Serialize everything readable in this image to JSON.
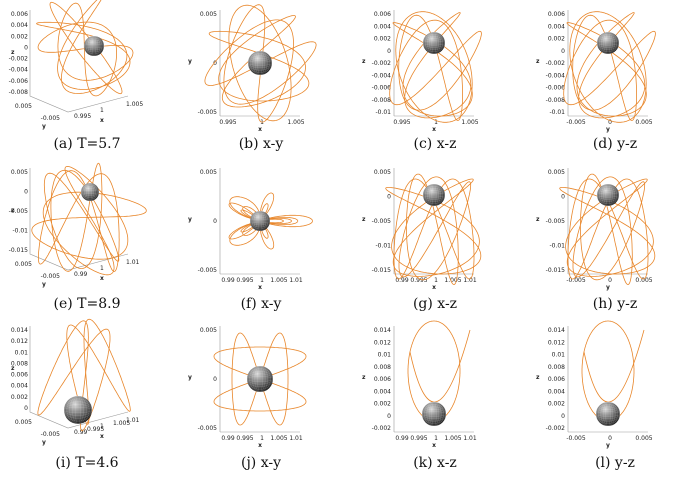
{
  "figures": [
    {
      "row": [
        {
          "caption": "(a)  T=5.7",
          "view": "3d",
          "xlabel": "x",
          "ylabel": "y",
          "zlabel": "z",
          "xticks": [
            "0.995",
            "1",
            "1.005"
          ],
          "yticks": [
            "0.005",
            "-0.005"
          ],
          "zticks": [
            "0.006",
            "0.004",
            "0.002",
            "0",
            "-0.002",
            "-0.004",
            "-0.006",
            "-0.008"
          ]
        },
        {
          "caption": "(b)  x-y",
          "view": "xy",
          "xlabel": "x",
          "ylabel": "y",
          "xticks": [
            "0.995",
            "1",
            "1.005"
          ],
          "yticks": [
            "0.005",
            "0",
            "-0.005"
          ]
        },
        {
          "caption": "(c)  x-z",
          "view": "xz",
          "xlabel": "x",
          "ylabel": "z",
          "xticks": [
            "0.995",
            "1",
            "1.005"
          ],
          "yticks": [
            "0.006",
            "0.004",
            "0.002",
            "0",
            "-0.002",
            "-0.004",
            "-0.006",
            "-0.008",
            "-0.01"
          ]
        },
        {
          "caption": "(d)  y-z",
          "view": "yz",
          "xlabel": "y",
          "ylabel": "z",
          "xticks": [
            "-0.005",
            "0",
            "0.005"
          ],
          "yticks": [
            "0.006",
            "0.004",
            "0.002",
            "0",
            "-0.002",
            "-0.004",
            "-0.006",
            "-0.008",
            "-0.01"
          ]
        }
      ]
    },
    {
      "row": [
        {
          "caption": "(e)  T=8.9",
          "view": "3d",
          "xlabel": "x",
          "ylabel": "y",
          "zlabel": "z",
          "xticks": [
            "0.99",
            "1",
            "1.01"
          ],
          "yticks": [
            "0.005",
            "-0.005"
          ],
          "zticks": [
            "0.005",
            "0",
            "-0.005",
            "-0.01",
            "-0.015"
          ]
        },
        {
          "caption": "(f)  x-y",
          "view": "xy",
          "xlabel": "x",
          "ylabel": "y",
          "xticks": [
            "0.99",
            "0.995",
            "1",
            "1.005",
            "1.01"
          ],
          "yticks": [
            "0.005",
            "0",
            "-0.005"
          ]
        },
        {
          "caption": "(g)  x-z",
          "view": "xz",
          "xlabel": "x",
          "ylabel": "z",
          "xticks": [
            "0.99",
            "0.995",
            "1",
            "1.005",
            "1.01"
          ],
          "yticks": [
            "0.005",
            "0",
            "-0.005",
            "-0.01",
            "-0.015"
          ]
        },
        {
          "caption": "(h)  y-z",
          "view": "yz",
          "xlabel": "y",
          "ylabel": "z",
          "xticks": [
            "-0.005",
            "0",
            "0.005"
          ],
          "yticks": [
            "0.005",
            "0",
            "-0.005",
            "-0.01",
            "-0.015"
          ]
        }
      ]
    },
    {
      "row": [
        {
          "caption": "(i)  T=4.6",
          "view": "3d",
          "xlabel": "x",
          "ylabel": "y",
          "zlabel": "z",
          "xticks": [
            "0.99",
            "0.995",
            "1",
            "1.005",
            "1.01"
          ],
          "yticks": [
            "0.005",
            "-0.005"
          ],
          "zticks": [
            "0.014",
            "0.012",
            "0.01",
            "0.008",
            "0.006",
            "0.004",
            "0.002",
            "0"
          ]
        },
        {
          "caption": "(j)  x-y",
          "view": "xy",
          "xlabel": "x",
          "ylabel": "y",
          "xticks": [
            "0.99",
            "0.995",
            "1",
            "1.005",
            "1.01"
          ],
          "yticks": [
            "0.005",
            "0",
            "-0.005"
          ]
        },
        {
          "caption": "(k)  x-z",
          "view": "xz",
          "xlabel": "x",
          "ylabel": "z",
          "xticks": [
            "0.99",
            "0.995",
            "1",
            "1.005",
            "1.01"
          ],
          "yticks": [
            "0.014",
            "0.012",
            "0.01",
            "0.008",
            "0.006",
            "0.004",
            "0.002",
            "0",
            "-0.002"
          ]
        },
        {
          "caption": "(l)  y-z",
          "view": "yz",
          "xlabel": "y",
          "ylabel": "z",
          "xticks": [
            "-0.005",
            "0",
            "0.005"
          ],
          "yticks": [
            "0.014",
            "0.012",
            "0.01",
            "0.008",
            "0.006",
            "0.004",
            "0.002",
            "0",
            "-0.002"
          ]
        }
      ]
    }
  ],
  "colors": {
    "orbit": "#e8862a",
    "sphere_light": "#d9d9d9",
    "sphere_dark": "#111111"
  }
}
